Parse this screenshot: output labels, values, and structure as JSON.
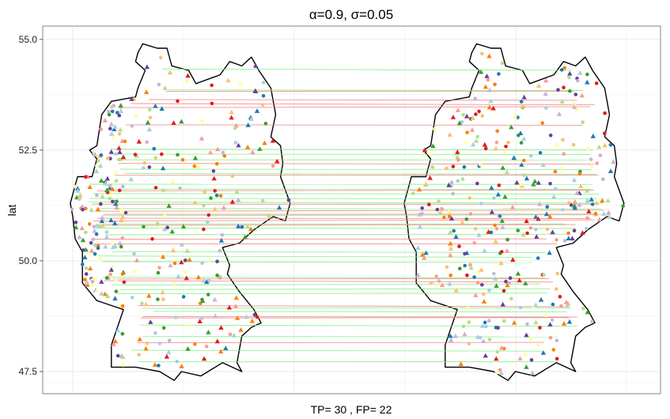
{
  "chart_data": {
    "type": "scatter",
    "title": "α=0.9, σ=0.05",
    "xlabel": "TP= 30 , FP= 22",
    "ylabel": "lat",
    "ylim": [
      47.0,
      55.3
    ],
    "y_ticks": [
      "47.5",
      "50.0",
      "52.5",
      "55.0"
    ],
    "y_tick_values": [
      47.5,
      50.0,
      52.5,
      55.0
    ],
    "grid": true,
    "legend": "none",
    "colors": {
      "tp_line": "#7df07d",
      "fp_line": "#f08080",
      "map_outline": "#000000",
      "panel_border": "#666666",
      "grid": "#ebebeb",
      "point_palette": [
        "#a6cee3",
        "#1f78b4",
        "#b2df8a",
        "#33a02c",
        "#fb9a99",
        "#e31a1c",
        "#fdbf6f",
        "#ff7f00",
        "#cab2d6",
        "#6a3d9a",
        "#ffff99"
      ]
    },
    "tp_lines_lat": [
      54.33,
      53.86,
      52.52,
      52.41,
      52.28,
      52.07,
      51.97,
      51.73,
      51.62,
      51.52,
      51.41,
      51.33,
      51.18,
      51.02,
      50.83,
      50.74,
      50.59,
      50.21,
      50.11,
      49.98,
      49.63,
      49.45,
      49.35,
      49.26,
      48.93,
      48.86,
      48.55,
      48.29,
      47.98,
      47.72
    ],
    "fp_lines_lat": [
      53.83,
      53.64,
      53.55,
      53.46,
      53.07,
      52.2,
      51.93,
      51.58,
      51.28,
      51.12,
      51.05,
      50.96,
      50.9,
      50.8,
      50.49,
      50.38,
      49.59,
      49.55,
      48.99,
      48.74,
      48.71,
      48.15
    ],
    "points_per_map": 360
  }
}
